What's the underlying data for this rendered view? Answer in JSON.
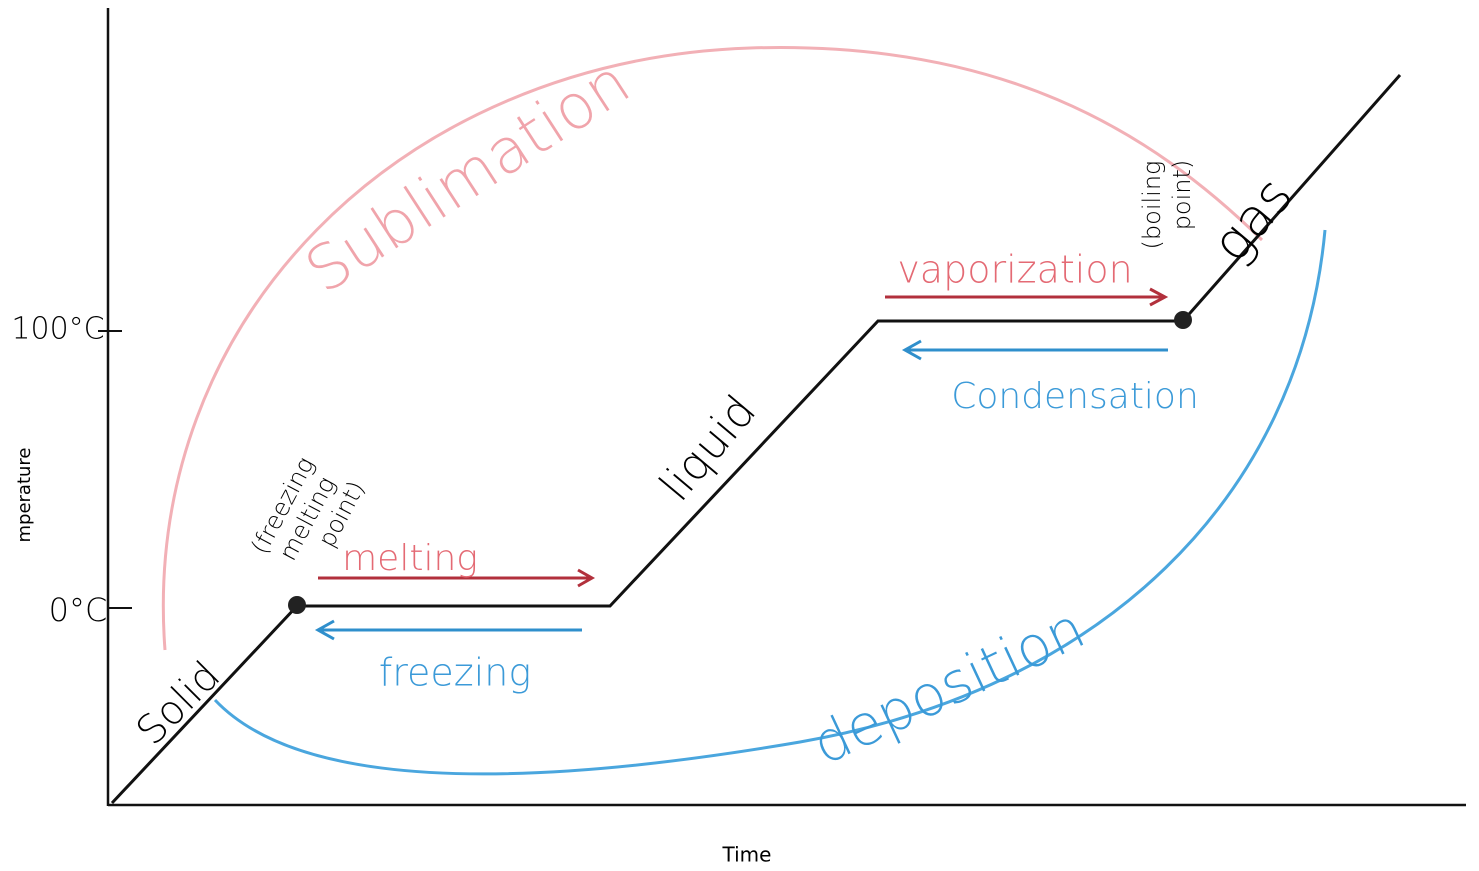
{
  "axes": {
    "x_label": "Time",
    "y_label": "mperature",
    "ticks": [
      "100°C",
      "0°C"
    ]
  },
  "phases": {
    "solid": "Solid",
    "liquid": "liquid",
    "gas": "gas"
  },
  "points": {
    "melting_point": [
      "(freezing",
      "melting",
      "point)"
    ],
    "boiling_point": [
      "(boiling",
      "point)"
    ]
  },
  "processes": {
    "melting": "melting",
    "freezing": "freezing",
    "vaporization": "vaporization",
    "condensation": "Condensation",
    "sublimation": "Sublimation",
    "deposition": "deposition"
  }
}
